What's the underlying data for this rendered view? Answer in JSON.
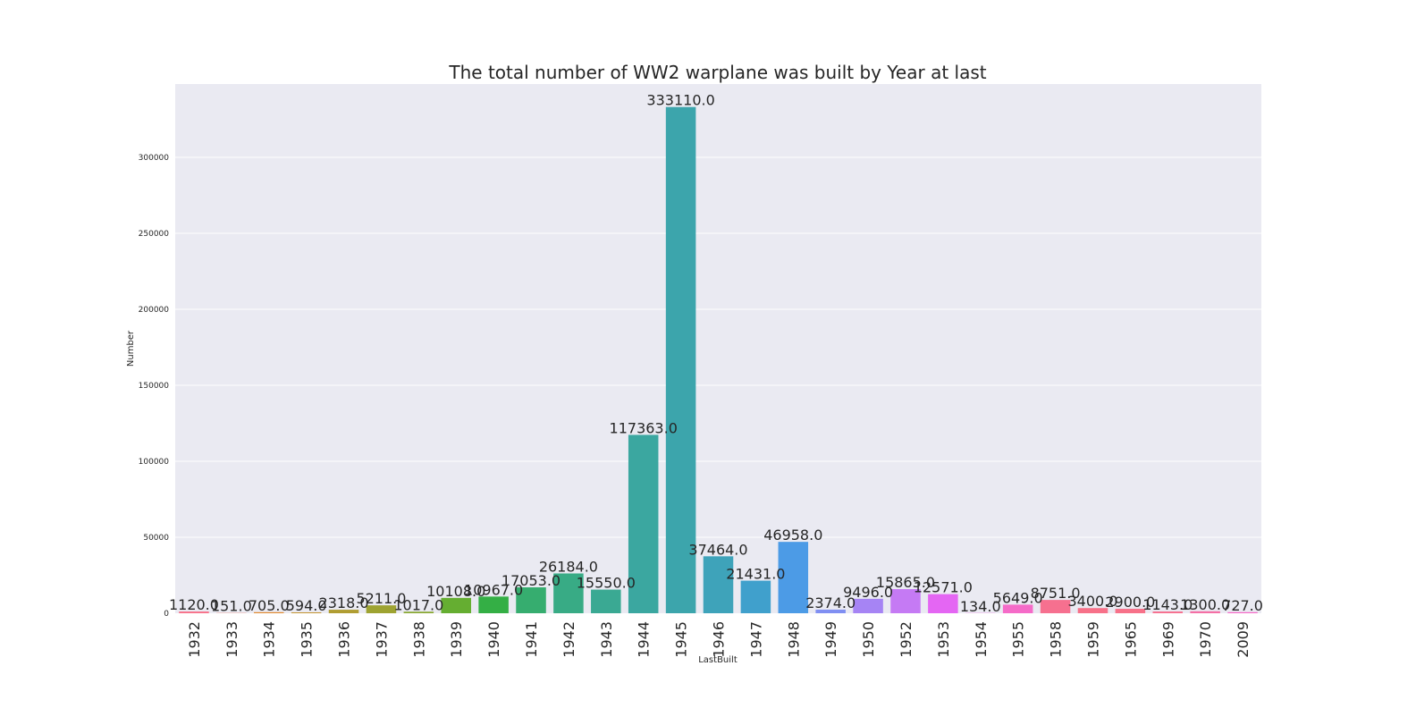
{
  "chart_data": {
    "type": "bar",
    "title": "The total number of WW2 warplane was built by Year at last",
    "xlabel": "LastBuilt",
    "ylabel": "Number",
    "ylim": [
      0,
      340000
    ],
    "yticks": [
      "0",
      "50000",
      "100000",
      "150000",
      "200000",
      "250000",
      "300000"
    ],
    "grid": true,
    "categories": [
      "1932",
      "1933",
      "1934",
      "1935",
      "1936",
      "1937",
      "1938",
      "1939",
      "1940",
      "1941",
      "1942",
      "1943",
      "1944",
      "1945",
      "1946",
      "1947",
      "1948",
      "1949",
      "1950",
      "1952",
      "1953",
      "1954",
      "1955",
      "1958",
      "1959",
      "1965",
      "1969",
      "1970",
      "2009"
    ],
    "values": [
      1120,
      151,
      705,
      594,
      2318,
      5211,
      1017,
      10108,
      10967,
      17053,
      26184,
      15550,
      117363,
      333110,
      37464,
      21431,
      46958,
      2374,
      9496,
      15865,
      12571,
      134,
      5649,
      8751,
      3400,
      2900,
      1143,
      1300,
      727
    ],
    "value_labels": [
      "1120.0",
      "151.0",
      "705.0",
      "594.0",
      "2318.0",
      "5211.0",
      "1017.0",
      "10108.0",
      "10967.0",
      "17053.0",
      "26184.0",
      "15550.0",
      "117363.0",
      "333110.0",
      "37464.0",
      "21431.0",
      "46958.0",
      "2374.0",
      "9496.0",
      "15865.0",
      "12571.0",
      "134.0",
      "5649.0",
      "8751.0",
      "3400.0",
      "2900.0",
      "1143.0",
      "1300.0",
      "727.0"
    ],
    "colors": {
      "background": "#EAEAF2",
      "grid": "#FFFFFF",
      "bars": [
        "#F77189",
        "#F2755F",
        "#E08B31",
        "#C39532",
        "#B09D32",
        "#9EA331",
        "#88A731",
        "#65AE31",
        "#34AF45",
        "#36AD6F",
        "#38AB85",
        "#3AA993",
        "#3BA7A0",
        "#3CA5AC",
        "#3EA3BA",
        "#40A0CC",
        "#4C9BE6",
        "#808FF2",
        "#A684F4",
        "#C57AF4",
        "#E466F3",
        "#F369DE",
        "#F56BC8",
        "#F6708F",
        "#F77189",
        "#F77189",
        "#F6708F",
        "#F46FA5",
        "#F56BC8"
      ]
    }
  }
}
